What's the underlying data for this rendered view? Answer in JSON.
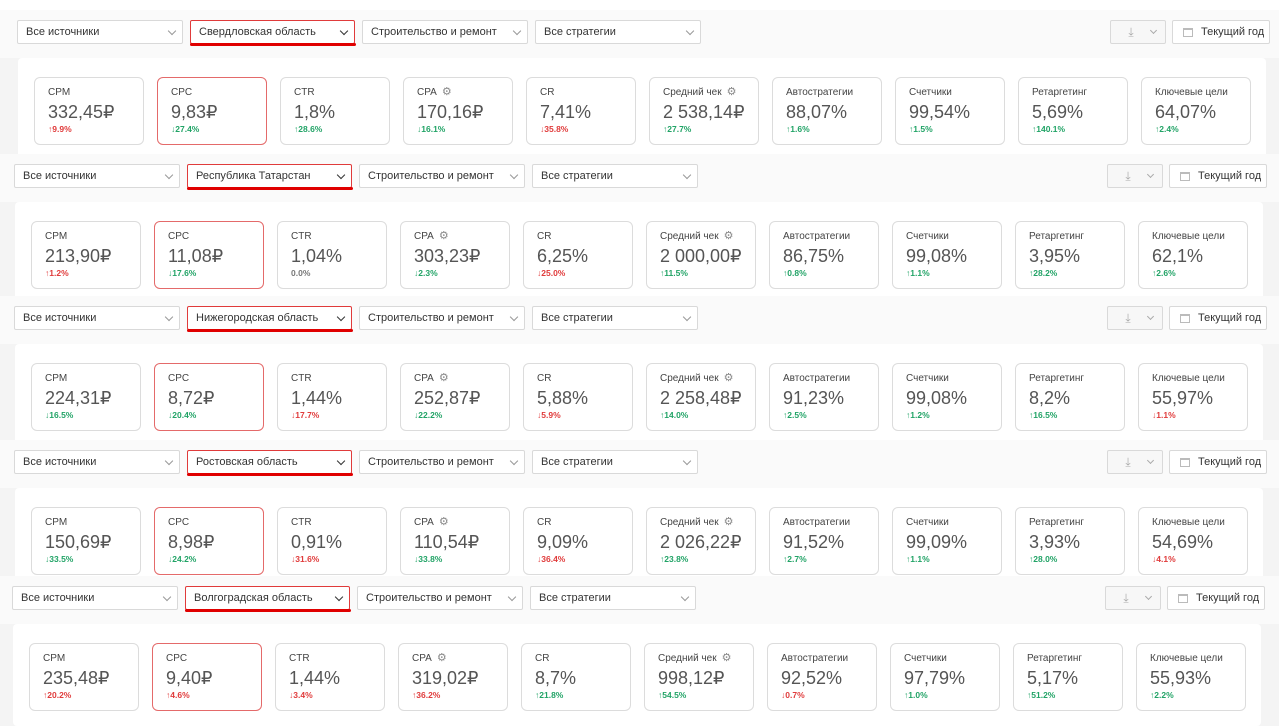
{
  "filters": {
    "source": "Все источники",
    "category": "Строительство и ремонт",
    "strategy": "Все стратегии",
    "period": "Текущий год",
    "download_icon": "download-icon"
  },
  "panels": [
    {
      "region": "Свердловская область",
      "metrics": [
        {
          "label": "CPM",
          "value": "332,45₽",
          "change": "↑9.9%",
          "dir": "up-red"
        },
        {
          "label": "CPC",
          "value": "9,83₽",
          "change": "↓27.4%",
          "dir": "down-green"
        },
        {
          "label": "CTR",
          "value": "1,8%",
          "change": "↑28.6%",
          "dir": "up"
        },
        {
          "label": "CPA",
          "value": "170,16₽",
          "change": "↓16.1%",
          "dir": "down-green",
          "gear": true
        },
        {
          "label": "CR",
          "value": "7,41%",
          "change": "↓35.8%",
          "dir": "down"
        },
        {
          "label": "Средний чек",
          "value": "2 538,14₽",
          "change": "↑27.7%",
          "dir": "up",
          "gear": true
        },
        {
          "label": "Автостратегии",
          "value": "88,07%",
          "change": "↑1.6%",
          "dir": "up"
        },
        {
          "label": "Счетчики",
          "value": "99,54%",
          "change": "↑1.5%",
          "dir": "up"
        },
        {
          "label": "Ретаргетинг",
          "value": "5,69%",
          "change": "↑140.1%",
          "dir": "up"
        },
        {
          "label": "Ключевые цели",
          "value": "64,07%",
          "change": "↑2.4%",
          "dir": "up"
        }
      ]
    },
    {
      "region": "Республика Татарстан",
      "metrics": [
        {
          "label": "CPM",
          "value": "213,90₽",
          "change": "↑1.2%",
          "dir": "up-red"
        },
        {
          "label": "CPC",
          "value": "11,08₽",
          "change": "↓17.6%",
          "dir": "down-green"
        },
        {
          "label": "CTR",
          "value": "1,04%",
          "change": "0.0%",
          "dir": "neutral"
        },
        {
          "label": "CPA",
          "value": "303,23₽",
          "change": "↓2.3%",
          "dir": "down-green",
          "gear": true
        },
        {
          "label": "CR",
          "value": "6,25%",
          "change": "↓25.0%",
          "dir": "down"
        },
        {
          "label": "Средний чек",
          "value": "2 000,00₽",
          "change": "↑11.5%",
          "dir": "up",
          "gear": true
        },
        {
          "label": "Автостратегии",
          "value": "86,75%",
          "change": "↑0.8%",
          "dir": "up"
        },
        {
          "label": "Счетчики",
          "value": "99,08%",
          "change": "↑1.1%",
          "dir": "up"
        },
        {
          "label": "Ретаргетинг",
          "value": "3,95%",
          "change": "↑28.2%",
          "dir": "up"
        },
        {
          "label": "Ключевые цели",
          "value": "62,1%",
          "change": "↑2.6%",
          "dir": "up"
        }
      ]
    },
    {
      "region": "Нижегородская область",
      "metrics": [
        {
          "label": "CPM",
          "value": "224,31₽",
          "change": "↓16.5%",
          "dir": "down-green"
        },
        {
          "label": "CPC",
          "value": "8,72₽",
          "change": "↓20.4%",
          "dir": "down-green"
        },
        {
          "label": "CTR",
          "value": "1,44%",
          "change": "↓17.7%",
          "dir": "down"
        },
        {
          "label": "CPA",
          "value": "252,87₽",
          "change": "↓22.2%",
          "dir": "down-green",
          "gear": true
        },
        {
          "label": "CR",
          "value": "5,88%",
          "change": "↓5.9%",
          "dir": "down"
        },
        {
          "label": "Средний чек",
          "value": "2 258,48₽",
          "change": "↑14.0%",
          "dir": "up",
          "gear": true
        },
        {
          "label": "Автостратегии",
          "value": "91,23%",
          "change": "↑2.5%",
          "dir": "up"
        },
        {
          "label": "Счетчики",
          "value": "99,08%",
          "change": "↑1.2%",
          "dir": "up"
        },
        {
          "label": "Ретаргетинг",
          "value": "8,2%",
          "change": "↑16.5%",
          "dir": "up"
        },
        {
          "label": "Ключевые цели",
          "value": "55,97%",
          "change": "↓1.1%",
          "dir": "down"
        }
      ]
    },
    {
      "region": "Ростовская область",
      "metrics": [
        {
          "label": "CPM",
          "value": "150,69₽",
          "change": "↓33.5%",
          "dir": "down-green"
        },
        {
          "label": "CPC",
          "value": "8,98₽",
          "change": "↓24.2%",
          "dir": "down-green"
        },
        {
          "label": "CTR",
          "value": "0,91%",
          "change": "↓31.6%",
          "dir": "down"
        },
        {
          "label": "CPA",
          "value": "110,54₽",
          "change": "↓33.8%",
          "dir": "down-green",
          "gear": true
        },
        {
          "label": "CR",
          "value": "9,09%",
          "change": "↓36.4%",
          "dir": "down"
        },
        {
          "label": "Средний чек",
          "value": "2 026,22₽",
          "change": "↑23.8%",
          "dir": "up",
          "gear": true
        },
        {
          "label": "Автостратегии",
          "value": "91,52%",
          "change": "↑2.7%",
          "dir": "up"
        },
        {
          "label": "Счетчики",
          "value": "99,09%",
          "change": "↑1.1%",
          "dir": "up"
        },
        {
          "label": "Ретаргетинг",
          "value": "3,93%",
          "change": "↑28.0%",
          "dir": "up"
        },
        {
          "label": "Ключевые цели",
          "value": "54,69%",
          "change": "↓4.1%",
          "dir": "down"
        }
      ]
    },
    {
      "region": "Волгоградская область",
      "metrics": [
        {
          "label": "CPM",
          "value": "235,48₽",
          "change": "↑20.2%",
          "dir": "up-red"
        },
        {
          "label": "CPC",
          "value": "9,40₽",
          "change": "↑4.6%",
          "dir": "up-red"
        },
        {
          "label": "CTR",
          "value": "1,44%",
          "change": "↓3.4%",
          "dir": "down"
        },
        {
          "label": "CPA",
          "value": "319,02₽",
          "change": "↑36.2%",
          "dir": "up-red",
          "gear": true
        },
        {
          "label": "CR",
          "value": "8,7%",
          "change": "↑21.8%",
          "dir": "up"
        },
        {
          "label": "Средний чек",
          "value": "998,12₽",
          "change": "↑54.5%",
          "dir": "up",
          "gear": true
        },
        {
          "label": "Автостратегии",
          "value": "92,52%",
          "change": "↓0.7%",
          "dir": "down"
        },
        {
          "label": "Счетчики",
          "value": "97,79%",
          "change": "↑1.0%",
          "dir": "up"
        },
        {
          "label": "Ретаргетинг",
          "value": "5,17%",
          "change": "↑51.2%",
          "dir": "up"
        },
        {
          "label": "Ключевые цели",
          "value": "55,93%",
          "change": "↑2.2%",
          "dir": "up"
        }
      ]
    }
  ]
}
